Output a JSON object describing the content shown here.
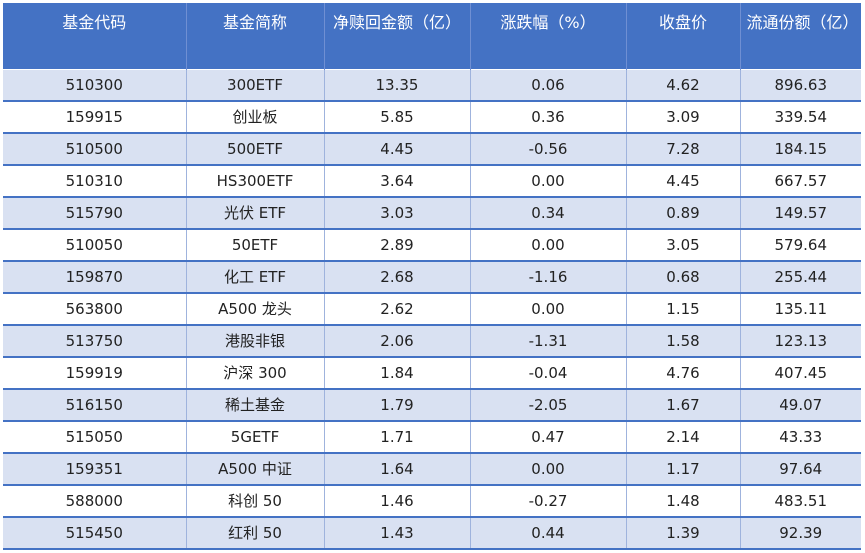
{
  "table": {
    "headers": [
      "基金代码",
      "基金简称",
      "净赎回金额（亿）",
      "涨跌幅（%）",
      "收盘价",
      "流通份额（亿）"
    ],
    "rows": [
      [
        "510300",
        "300ETF",
        "13.35",
        "0.06",
        "4.62",
        "896.63"
      ],
      [
        "159915",
        "创业板",
        "5.85",
        "0.36",
        "3.09",
        "339.54"
      ],
      [
        "510500",
        "500ETF",
        "4.45",
        "-0.56",
        "7.28",
        "184.15"
      ],
      [
        "510310",
        "HS300ETF",
        "3.64",
        "0.00",
        "4.45",
        "667.57"
      ],
      [
        "515790",
        "光伏 ETF",
        "3.03",
        "0.34",
        "0.89",
        "149.57"
      ],
      [
        "510050",
        "50ETF",
        "2.89",
        "0.00",
        "3.05",
        "579.64"
      ],
      [
        "159870",
        "化工 ETF",
        "2.68",
        "-1.16",
        "0.68",
        "255.44"
      ],
      [
        "563800",
        "A500 龙头",
        "2.62",
        "0.00",
        "1.15",
        "135.11"
      ],
      [
        "513750",
        "港股非银",
        "2.06",
        "-1.31",
        "1.58",
        "123.13"
      ],
      [
        "159919",
        "沪深 300",
        "1.84",
        "-0.04",
        "4.76",
        "407.45"
      ],
      [
        "516150",
        "稀土基金",
        "1.79",
        "-2.05",
        "1.67",
        "49.07"
      ],
      [
        "515050",
        "5GETF",
        "1.71",
        "0.47",
        "2.14",
        "43.33"
      ],
      [
        "159351",
        "A500 中证",
        "1.64",
        "0.00",
        "1.17",
        "97.64"
      ],
      [
        "588000",
        "科创 50",
        "1.46",
        "-0.27",
        "1.48",
        "483.51"
      ],
      [
        "515450",
        "红利 50",
        "1.43",
        "0.44",
        "1.39",
        "92.39"
      ]
    ]
  },
  "colors": {
    "header_bg": "#4472c4",
    "band": "#d9e1f2",
    "header_text": "#ffffff"
  }
}
